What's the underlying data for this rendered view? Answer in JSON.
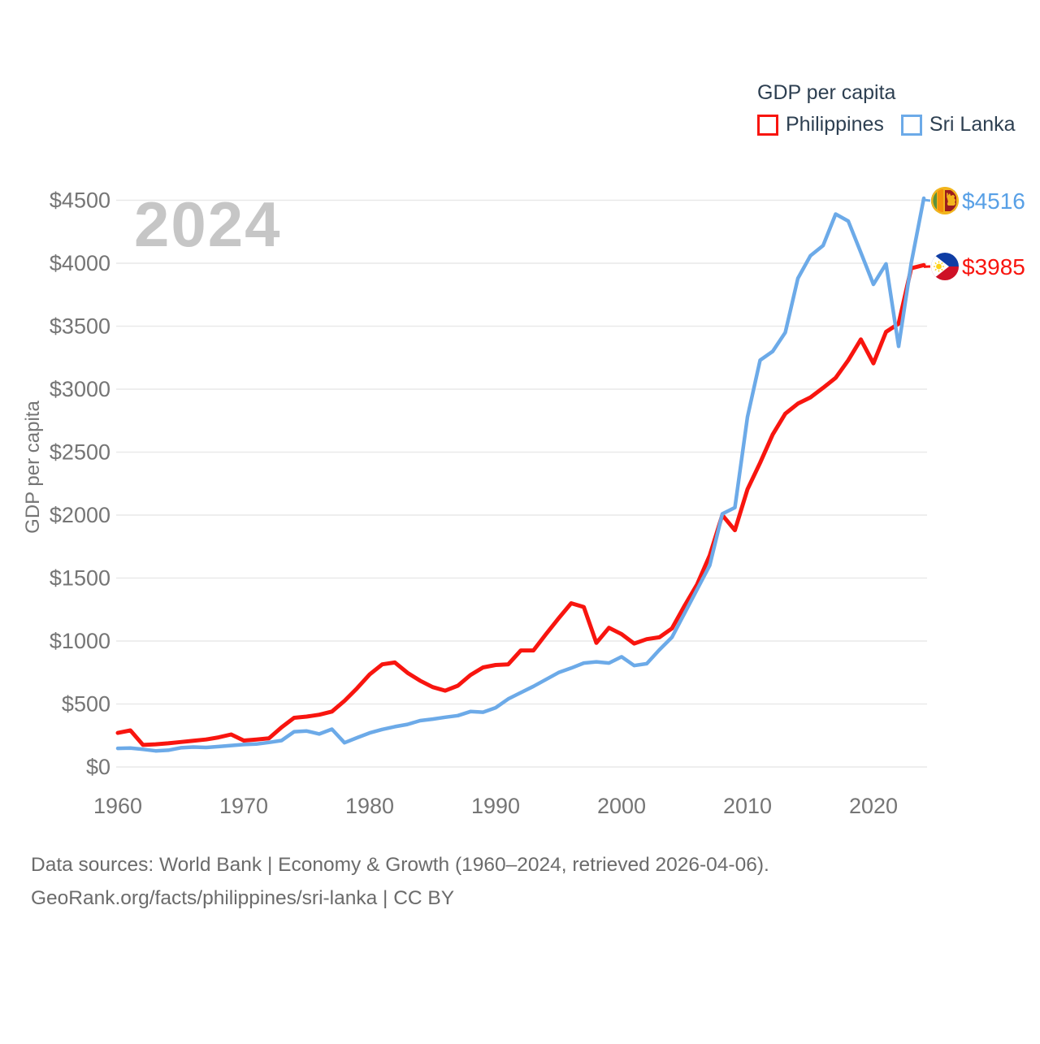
{
  "watermark": "2024",
  "legend": {
    "title": "GDP per capita",
    "items": [
      {
        "label": "Philippines",
        "color": "#f8150f"
      },
      {
        "label": "Sri Lanka",
        "color": "#6caae8"
      }
    ]
  },
  "footer": {
    "line1": "Data sources: World Bank | Economy & Growth (1960–2024, retrieved 2026-04-06).",
    "line2": "GeoRank.org/facts/philippines/sri-lanka | CC BY"
  },
  "colors": {
    "philippines_line": "#f8150f",
    "sri_lanka_line": "#6caae8",
    "philippines_value_text": "#f8150f",
    "sri_lanka_value_text": "#58a0e6",
    "grid": "#e9e9e9",
    "tick_text": "#757575",
    "axis_title_text": "#757575",
    "legend_text": "#2d3f51",
    "watermark_text": "#c6c6c6",
    "footer_text": "#6b6b6b"
  },
  "flags": {
    "sri_lanka": {
      "name": "sri-lanka-flag-icon",
      "gold": "#f2b51d",
      "green": "#5c913b",
      "orange": "#f4900c",
      "maroon": "#9a1b1f"
    },
    "philippines": {
      "name": "philippines-flag-icon",
      "blue": "#0f3da4",
      "red": "#ce1126",
      "white": "#ffffff",
      "sun": "#fcd116"
    }
  },
  "chart_data": {
    "type": "line",
    "title": "GDP per capita",
    "ylabel": "GDP per capita",
    "xlabel": "",
    "ylim": [
      0,
      4700
    ],
    "xlim": [
      1960,
      2024
    ],
    "grid": true,
    "legend_position": "top-right",
    "xticks": [
      1960,
      1970,
      1980,
      1990,
      2000,
      2010,
      2020
    ],
    "yticks": [
      {
        "value": 0,
        "label": "$0"
      },
      {
        "value": 500,
        "label": "$500"
      },
      {
        "value": 1000,
        "label": "$1000"
      },
      {
        "value": 1500,
        "label": "$1500"
      },
      {
        "value": 2000,
        "label": "$2000"
      },
      {
        "value": 2500,
        "label": "$2500"
      },
      {
        "value": 3000,
        "label": "$3000"
      },
      {
        "value": 3500,
        "label": "$3500"
      },
      {
        "value": 4000,
        "label": "$4000"
      },
      {
        "value": 4500,
        "label": "$4500"
      }
    ],
    "years": [
      1960,
      1961,
      1962,
      1963,
      1964,
      1965,
      1966,
      1967,
      1968,
      1969,
      1970,
      1971,
      1972,
      1973,
      1974,
      1975,
      1976,
      1977,
      1978,
      1979,
      1980,
      1981,
      1982,
      1983,
      1984,
      1985,
      1986,
      1987,
      1988,
      1989,
      1990,
      1991,
      1992,
      1993,
      1994,
      1995,
      1996,
      1997,
      1998,
      1999,
      2000,
      2001,
      2002,
      2003,
      2004,
      2005,
      2006,
      2007,
      2008,
      2009,
      2010,
      2011,
      2012,
      2013,
      2014,
      2015,
      2016,
      2017,
      2018,
      2019,
      2020,
      2021,
      2022,
      2023,
      2024
    ],
    "series": [
      {
        "name": "Philippines",
        "color": "#f8150f",
        "end_label": "$3985",
        "end_value": 3985,
        "flag": "philippines",
        "values": [
          270,
          290,
          175,
          180,
          188,
          198,
          208,
          218,
          235,
          258,
          210,
          218,
          228,
          315,
          390,
          400,
          415,
          440,
          525,
          625,
          735,
          815,
          830,
          748,
          685,
          634,
          606,
          645,
          730,
          790,
          810,
          815,
          925,
          925,
          1055,
          1180,
          1300,
          1270,
          985,
          1105,
          1055,
          980,
          1015,
          1030,
          1100,
          1280,
          1450,
          1680,
          2000,
          1880,
          2205,
          2415,
          2640,
          2805,
          2885,
          2935,
          3010,
          3090,
          3230,
          3395,
          3205,
          3455,
          3520,
          3960,
          3985
        ]
      },
      {
        "name": "Sri Lanka",
        "color": "#6caae8",
        "end_label": "$4516",
        "end_value": 4516,
        "flag": "sri_lanka",
        "values": [
          148,
          150,
          140,
          128,
          133,
          152,
          158,
          155,
          162,
          170,
          178,
          182,
          195,
          210,
          280,
          285,
          262,
          300,
          192,
          232,
          270,
          298,
          320,
          338,
          368,
          380,
          395,
          408,
          440,
          435,
          470,
          540,
          590,
          640,
          695,
          750,
          785,
          825,
          835,
          825,
          875,
          805,
          820,
          930,
          1030,
          1220,
          1410,
          1600,
          2010,
          2060,
          2780,
          3230,
          3300,
          3450,
          3880,
          4060,
          4140,
          4390,
          4335,
          4085,
          3832,
          3995,
          3340,
          4000,
          4516
        ]
      }
    ]
  }
}
